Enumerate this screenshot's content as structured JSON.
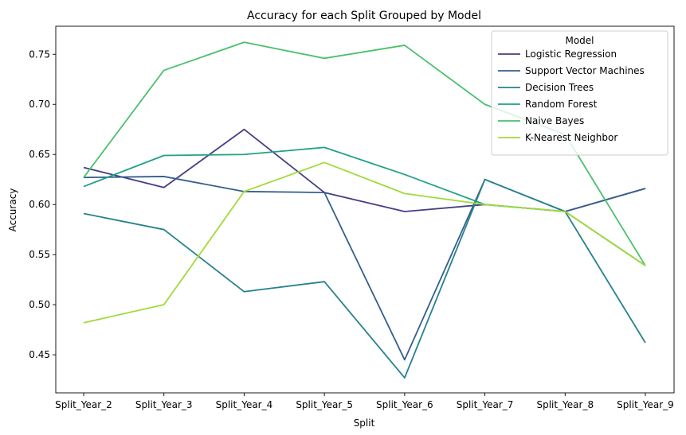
{
  "chart_data": {
    "type": "line",
    "title": "Accuracy for each Split Grouped by Model",
    "xlabel": "Split",
    "ylabel": "Accuracy",
    "categories": [
      "Split_Year_2",
      "Split_Year_3",
      "Split_Year_4",
      "Split_Year_5",
      "Split_Year_6",
      "Split_Year_7",
      "Split_Year_8",
      "Split_Year_9"
    ],
    "ylim": [
      0.412,
      0.778
    ],
    "yticks": [
      0.45,
      0.5,
      0.55,
      0.6,
      0.65,
      0.7,
      0.75
    ],
    "ytick_labels": [
      "0.45",
      "0.50",
      "0.55",
      "0.60",
      "0.65",
      "0.70",
      "0.75"
    ],
    "grid": false,
    "legend": {
      "title": "Model",
      "placement": "top-right"
    },
    "series": [
      {
        "name": "Logistic Regression",
        "color": "#433e85",
        "values": [
          0.637,
          0.617,
          0.675,
          0.612,
          0.593,
          0.6,
          0.593,
          0.616
        ]
      },
      {
        "name": "Support Vector Machines",
        "color": "#355f8d",
        "values": [
          0.627,
          0.628,
          0.613,
          0.612,
          0.445,
          0.625,
          0.593,
          0.616
        ]
      },
      {
        "name": "Decision Trees",
        "color": "#26828e",
        "values": [
          0.591,
          0.575,
          0.513,
          0.523,
          0.427,
          0.625,
          0.593,
          0.462
        ]
      },
      {
        "name": "Random Forest",
        "color": "#1fa187",
        "values": [
          0.618,
          0.649,
          0.65,
          0.657,
          0.63,
          0.6,
          0.593,
          0.539
        ]
      },
      {
        "name": "Naive Bayes",
        "color": "#4ac16d",
        "values": [
          0.627,
          0.734,
          0.762,
          0.746,
          0.759,
          0.7,
          0.67,
          0.539
        ]
      },
      {
        "name": "K-Nearest Neighbor",
        "color": "#a0da39",
        "values": [
          0.482,
          0.5,
          0.613,
          0.642,
          0.611,
          0.6,
          0.593,
          0.539
        ]
      }
    ]
  }
}
